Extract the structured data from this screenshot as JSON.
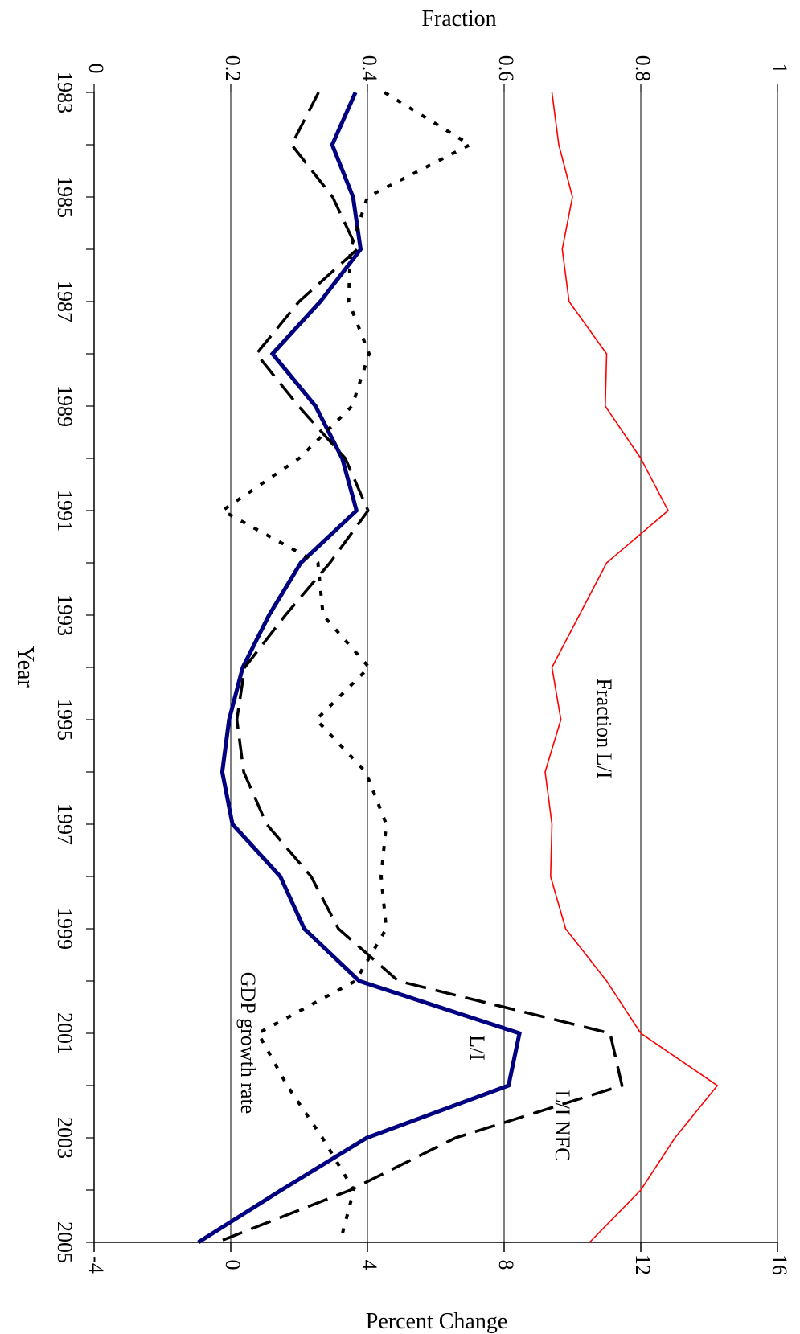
{
  "chart_data": {
    "type": "line",
    "orientation": "rotated-90-clockwise",
    "xlabel": "Year",
    "ylabel": "Percent Change",
    "y2label": "Fraction",
    "xlim": [
      1983,
      2005
    ],
    "ylim": [
      -4,
      16
    ],
    "y2lim": [
      0,
      1
    ],
    "x_ticks": [
      "1983",
      "1985",
      "1987",
      "1989",
      "1991",
      "1993",
      "1995",
      "1997",
      "1999",
      "2001",
      "2003",
      "2005"
    ],
    "y_ticks": [
      "-4",
      "0",
      "4",
      "8",
      "12",
      "16"
    ],
    "y2_ticks": [
      "0",
      "0.2",
      "0.4",
      "0.6",
      "0.8",
      "1"
    ],
    "grid": true,
    "series": [
      {
        "name": "L/I",
        "axis": "primary",
        "style": "solid-thick",
        "color": "#000080",
        "x": [
          1983,
          1984,
          1985,
          1986,
          1987,
          1988,
          1989,
          1990,
          1991,
          1992,
          1993,
          1994,
          1995,
          1996,
          1997,
          1998,
          1999,
          2000,
          2001,
          2002,
          2003,
          2004,
          2005
        ],
        "values": [
          3.65,
          2.97,
          3.58,
          3.8,
          2.62,
          1.22,
          2.48,
          3.26,
          3.68,
          2.05,
          1.12,
          0.35,
          -0.05,
          -0.25,
          0.05,
          1.45,
          2.15,
          3.76,
          8.45,
          8.13,
          3.98,
          1.48,
          -0.95
        ]
      },
      {
        "name": "L/I NFC",
        "axis": "primary",
        "style": "long-dash",
        "color": "#000000",
        "x": [
          1983,
          1984,
          1985,
          1986,
          1987,
          1988,
          1989,
          1990,
          1991,
          1992,
          1993,
          1994,
          1995,
          1996,
          1997,
          1998,
          1999,
          2000,
          2001,
          2002,
          2003,
          2004,
          2005
        ],
        "values": [
          2.57,
          1.78,
          2.98,
          3.7,
          2.0,
          0.75,
          1.98,
          3.35,
          4.02,
          2.9,
          1.6,
          0.41,
          0.18,
          0.38,
          1.05,
          2.35,
          3.15,
          4.9,
          11.1,
          11.45,
          6.58,
          3.5,
          -0.4
        ]
      },
      {
        "name": "GDP growth rate",
        "axis": "primary",
        "style": "dotted",
        "color": "#000000",
        "x": [
          1983,
          1984,
          1985,
          1986,
          1987,
          1988,
          1989,
          1990,
          1991,
          1992,
          1993,
          1994,
          1995,
          1996,
          1997,
          1998,
          1999,
          2000,
          2001,
          2002,
          2003,
          2004,
          2005
        ],
        "values": [
          4.5,
          7.0,
          4.0,
          3.5,
          3.45,
          4.05,
          3.55,
          2.0,
          -0.25,
          2.55,
          2.7,
          4.05,
          2.5,
          3.95,
          4.55,
          4.4,
          4.55,
          3.65,
          0.8,
          1.65,
          2.68,
          3.6,
          3.2
        ]
      },
      {
        "name": "Fraction L/I",
        "axis": "secondary",
        "style": "solid-thin",
        "color": "#ff0000",
        "x": [
          1983,
          1984,
          1985,
          1986,
          1987,
          1988,
          1989,
          1990,
          1991,
          1992,
          1993,
          1994,
          1995,
          1996,
          1997,
          1998,
          1999,
          2000,
          2001,
          2002,
          2003,
          2004,
          2005
        ],
        "values": [
          0.67,
          0.68,
          0.7,
          0.685,
          0.695,
          0.75,
          0.748,
          0.8,
          0.84,
          0.75,
          0.71,
          0.67,
          0.683,
          0.66,
          0.67,
          0.668,
          0.69,
          0.75,
          0.8,
          0.912,
          0.85,
          0.8,
          0.725
        ]
      }
    ],
    "annotations": [
      {
        "text": "Fraction L/I",
        "series": "Fraction L/I"
      },
      {
        "text": "L/I",
        "series": "L/I"
      },
      {
        "text": "L/I NFC",
        "series": "L/I NFC"
      },
      {
        "text": "GDP growth rate",
        "series": "GDP growth rate"
      }
    ]
  }
}
